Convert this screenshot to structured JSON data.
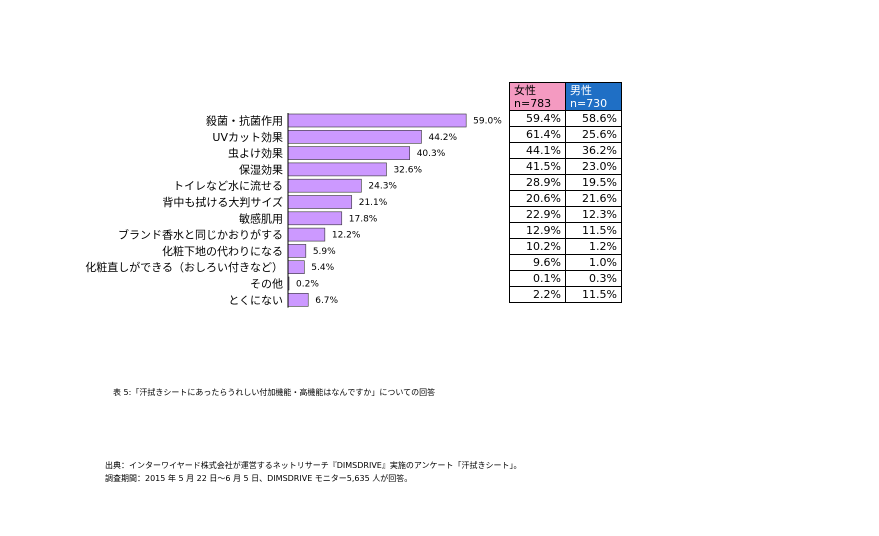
{
  "chart_data": {
    "type": "bar",
    "orientation": "horizontal",
    "categories": [
      "殺菌・抗菌作用",
      "UVカット効果",
      "虫よけ効果",
      "保湿効果",
      "トイレなど水に流せる",
      "背中も拭ける大判サイズ",
      "敏感肌用",
      "ブランド香水と同じかおりがする",
      "化粧下地の代わりになる",
      "化粧直しができる（おしろい付きなど）",
      "その他",
      "とくにない"
    ],
    "values": [
      59.0,
      44.2,
      40.3,
      32.6,
      24.3,
      21.1,
      17.8,
      12.2,
      5.9,
      5.4,
      0.2,
      6.7
    ],
    "value_labels": [
      "59.0%",
      "44.2%",
      "40.3%",
      "32.6%",
      "24.3%",
      "21.1%",
      "17.8%",
      "12.2%",
      "5.9%",
      "5.4%",
      "0.2%",
      "6.7%"
    ],
    "bar_color": "#cc99ff",
    "xlim": [
      0,
      100
    ]
  },
  "gender_table": {
    "female": {
      "label": "女性",
      "n": "n=783",
      "color": "#f49ac1",
      "values": [
        "59.4%",
        "61.4%",
        "44.1%",
        "41.5%",
        "28.9%",
        "20.6%",
        "22.9%",
        "12.9%",
        "10.2%",
        "9.6%",
        "0.1%",
        "2.2%"
      ]
    },
    "male": {
      "label": "男性",
      "n": "n=730",
      "color": "#1f6fc5",
      "values": [
        "58.6%",
        "25.6%",
        "36.2%",
        "23.0%",
        "19.5%",
        "21.6%",
        "12.3%",
        "11.5%",
        "1.2%",
        "1.0%",
        "0.3%",
        "11.5%"
      ]
    }
  },
  "caption": "表 5:「汗拭きシートにあったらうれしい付加機能・高機能はなんですか」についての回答",
  "source": "出典：インターワイヤード株式会社が運営するネットリサーチ『DIMSDRIVE』実施のアンケート「汗拭きシート」。",
  "period": "調査期間：2015 年 5 月 22 日～6 月 5 日、DIMSDRIVE モニター5,635 人が回答。"
}
